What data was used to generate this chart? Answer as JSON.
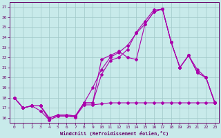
{
  "xlabel": "Windchill (Refroidissement éolien,°C)",
  "bg_color": "#c8eaea",
  "grid_color": "#a0c8c8",
  "line_color": "#aa00aa",
  "xlim": [
    -0.5,
    23.5
  ],
  "ylim": [
    15.5,
    27.5
  ],
  "xticks": [
    0,
    1,
    2,
    3,
    4,
    5,
    6,
    7,
    8,
    9,
    10,
    11,
    12,
    13,
    14,
    15,
    16,
    17,
    18,
    19,
    20,
    21,
    22,
    23
  ],
  "yticks": [
    16,
    17,
    18,
    19,
    20,
    21,
    22,
    23,
    24,
    25,
    26,
    27
  ],
  "line1_x": [
    0,
    1,
    2,
    3,
    4,
    5,
    6,
    7,
    8,
    9,
    10,
    11,
    12,
    13,
    14,
    15,
    16,
    17,
    18,
    19,
    20,
    21,
    22,
    23
  ],
  "line1_y": [
    18.0,
    17.0,
    17.2,
    16.7,
    15.8,
    16.2,
    16.2,
    16.1,
    17.5,
    17.5,
    21.8,
    22.2,
    22.6,
    22.0,
    21.8,
    25.3,
    26.5,
    26.8,
    23.5,
    21.0,
    22.2,
    20.5,
    20.0,
    17.5
  ],
  "line2_x": [
    0,
    1,
    2,
    3,
    4,
    5,
    6,
    7,
    8,
    9,
    10,
    11,
    12,
    13,
    14,
    15,
    16,
    17,
    18,
    19,
    20,
    21,
    22,
    23
  ],
  "line2_y": [
    18.0,
    17.0,
    17.2,
    17.2,
    16.0,
    16.3,
    16.3,
    16.2,
    17.5,
    17.5,
    20.3,
    21.7,
    22.0,
    22.8,
    24.5,
    25.6,
    26.7,
    26.8,
    23.5,
    21.0,
    22.2,
    20.5,
    20.0,
    17.6
  ],
  "line3_x": [
    0,
    1,
    2,
    3,
    4,
    5,
    6,
    7,
    8,
    9,
    10,
    11,
    12,
    13,
    14,
    15,
    16,
    17,
    18,
    19,
    20,
    21,
    22,
    23
  ],
  "line3_y": [
    18.0,
    17.0,
    17.2,
    17.2,
    16.0,
    16.3,
    16.3,
    16.2,
    17.5,
    19.0,
    20.8,
    22.0,
    22.5,
    23.2,
    24.4,
    25.3,
    26.5,
    26.8,
    23.5,
    21.0,
    22.2,
    20.8,
    20.0,
    17.5
  ],
  "line4_x": [
    0,
    1,
    2,
    3,
    4,
    5,
    6,
    7,
    8,
    9,
    10,
    11,
    12,
    13,
    14,
    15,
    16,
    17,
    18,
    19,
    20,
    21,
    22,
    23
  ],
  "line4_y": [
    18.0,
    17.0,
    17.2,
    17.2,
    15.8,
    16.2,
    16.2,
    16.1,
    17.3,
    17.3,
    17.4,
    17.5,
    17.5,
    17.5,
    17.5,
    17.5,
    17.5,
    17.5,
    17.5,
    17.5,
    17.5,
    17.5,
    17.5,
    17.5
  ]
}
